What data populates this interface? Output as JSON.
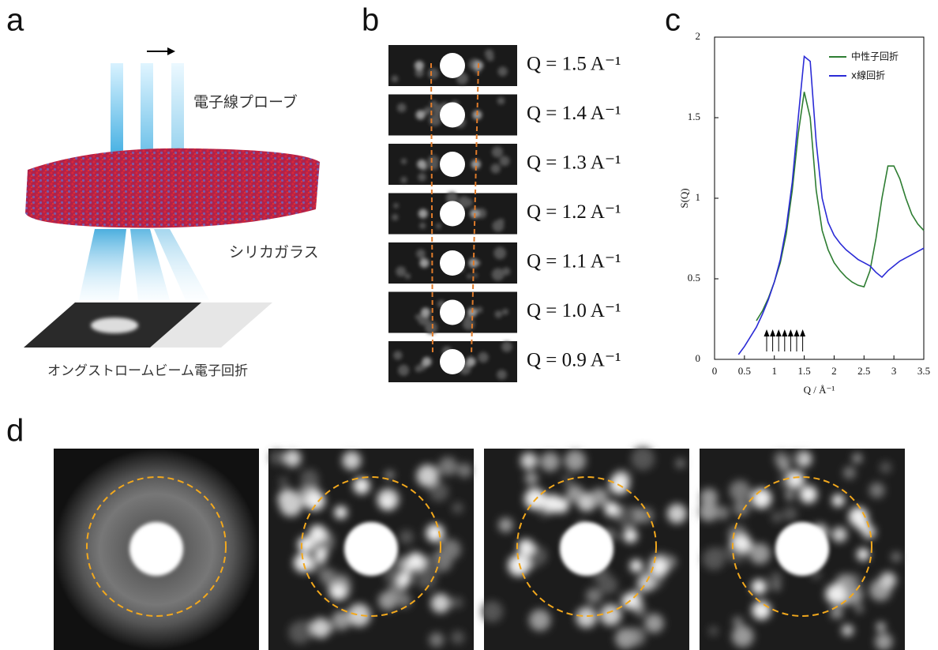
{
  "panel_a": {
    "label": "a",
    "probe": "電子線プローブ",
    "sample": "シリカガラス",
    "detector": "オングストロームビーム電子回折"
  },
  "panel_b": {
    "label": "b",
    "rows": [
      "Q = 1.5 A⁻¹",
      "Q = 1.4 A⁻¹",
      "Q = 1.3 A⁻¹",
      "Q = 1.2 A⁻¹",
      "Q = 1.1 A⁻¹",
      "Q = 1.0 A⁻¹",
      "Q = 0.9 A⁻¹"
    ]
  },
  "panel_c": {
    "label": "c"
  },
  "panel_d": {
    "label": "d"
  },
  "chart_data": {
    "type": "line",
    "xlabel": "Q / Å⁻¹",
    "ylabel": "S(Q)",
    "xlim": [
      0,
      3.5
    ],
    "ylim": [
      0,
      2
    ],
    "xticks": [
      0,
      0.5,
      1,
      1.5,
      2,
      2.5,
      3,
      3.5
    ],
    "yticks": [
      0,
      0.5,
      1,
      1.5,
      2
    ],
    "legend": "upper right",
    "x": [
      0.4,
      0.5,
      0.6,
      0.7,
      0.8,
      0.9,
      1.0,
      1.1,
      1.2,
      1.3,
      1.4,
      1.5,
      1.6,
      1.7,
      1.8,
      1.9,
      2.0,
      2.1,
      2.2,
      2.3,
      2.4,
      2.5,
      2.6,
      2.7,
      2.8,
      2.9,
      3.0,
      3.1,
      3.2,
      3.3,
      3.4,
      3.5
    ],
    "series": [
      {
        "name": "中性子回折",
        "color": "#2e7d32",
        "values": [
          null,
          null,
          null,
          0.24,
          0.3,
          0.38,
          0.48,
          0.6,
          0.78,
          1.05,
          1.4,
          1.66,
          1.5,
          1.05,
          0.8,
          0.68,
          0.6,
          0.55,
          0.51,
          0.48,
          0.46,
          0.45,
          0.55,
          0.75,
          1.0,
          1.2,
          1.2,
          1.12,
          1.0,
          0.9,
          0.84,
          0.8
        ]
      },
      {
        "name": "x線回折",
        "color": "#2b2bd6",
        "values": [
          0.03,
          0.08,
          0.14,
          0.2,
          0.28,
          0.37,
          0.48,
          0.62,
          0.82,
          1.1,
          1.5,
          1.88,
          1.85,
          1.35,
          1.0,
          0.85,
          0.77,
          0.72,
          0.68,
          0.65,
          0.62,
          0.6,
          0.58,
          0.54,
          0.51,
          0.55,
          0.58,
          0.61,
          0.63,
          0.65,
          0.67,
          0.69
        ]
      }
    ]
  }
}
